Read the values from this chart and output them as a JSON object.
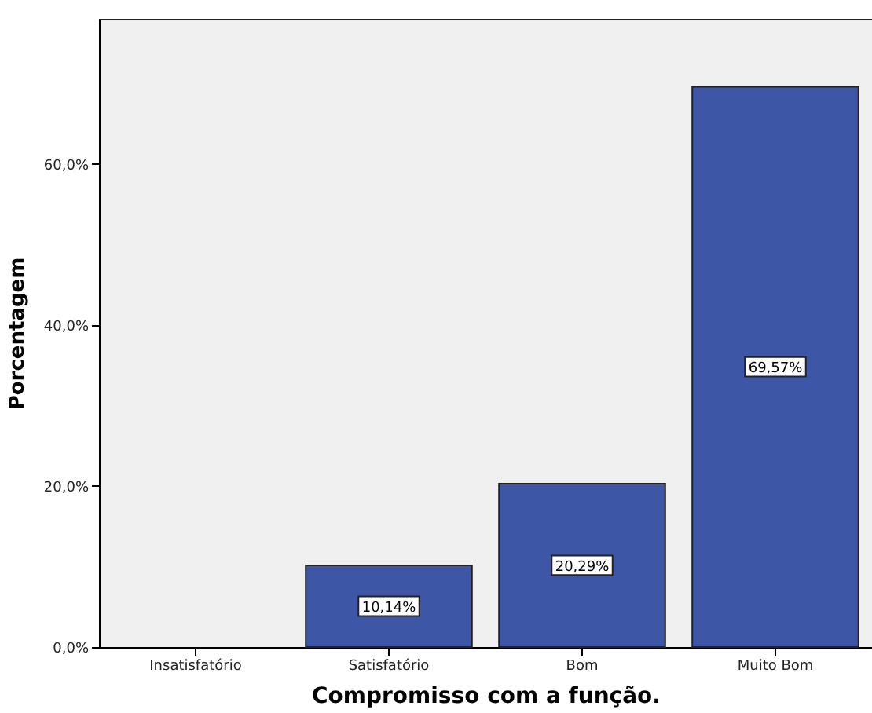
{
  "chart_data": {
    "type": "bar",
    "xlabel": "Compromisso com a função.",
    "ylabel": "Porcentagem",
    "categories": [
      "Insatisfatório",
      "Satisfatório",
      "Bom",
      "Muito Bom"
    ],
    "values": [
      null,
      10.14,
      20.29,
      69.57
    ],
    "color": "#3d56a6",
    "value_labels": [
      null,
      "10,14%",
      "20,29%",
      "69,57%"
    ],
    "ylim": [
      0,
      78
    ],
    "yticks": [
      {
        "value": 0,
        "label": "0,0%"
      },
      {
        "value": 20,
        "label": "20,0%"
      },
      {
        "value": 40,
        "label": "40,0%"
      },
      {
        "value": 60,
        "label": "60,0%"
      }
    ],
    "grid": false
  }
}
